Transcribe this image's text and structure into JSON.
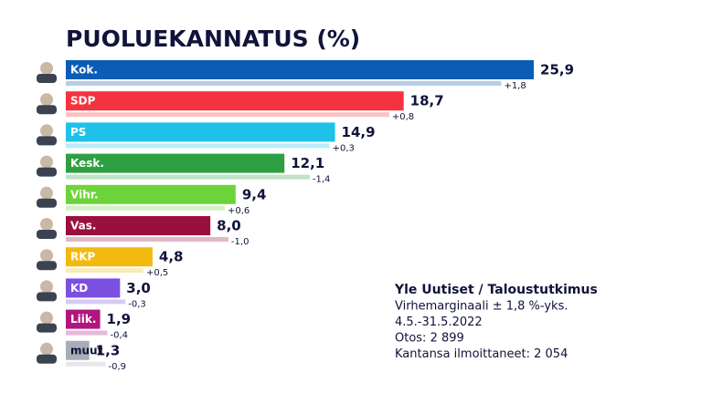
{
  "chart_data": {
    "type": "bar",
    "orientation": "horizontal",
    "title": "PUOLUEKANNATUS (%)",
    "categories": [
      "Kok.",
      "SDP",
      "PS",
      "Kesk.",
      "Vihr.",
      "Vas.",
      "RKP",
      "KD",
      "Liik.",
      "muut"
    ],
    "values": [
      25.9,
      18.7,
      14.9,
      12.1,
      9.4,
      8.0,
      4.8,
      3.0,
      1.9,
      1.3
    ],
    "value_labels": [
      "25,9",
      "18,7",
      "14,9",
      "12,1",
      "9,4",
      "8,0",
      "4,8",
      "3,0",
      "1,9",
      "1,3"
    ],
    "changes": [
      1.8,
      0.8,
      0.3,
      -1.4,
      0.6,
      -1.0,
      0.5,
      -0.3,
      -0.4,
      -0.9
    ],
    "change_labels": [
      "+1,8",
      "+0,8",
      "+0,3",
      "-1,4",
      "+0,6",
      "-1,0",
      "+0,5",
      "-0,3",
      "-0,4",
      "-0,9"
    ],
    "colors": [
      "#0a5cb5",
      "#f5333f",
      "#1fc1e8",
      "#2ea043",
      "#6dd33a",
      "#9b0f3f",
      "#f2b90f",
      "#7b4fe0",
      "#b0167d",
      "#a8aeb8"
    ],
    "xlim": [
      0,
      26
    ],
    "source": "Yle Uutiset / Taloustutkimus",
    "notes": [
      "Virhemarginaali ± 1,8 %-yks.",
      "4.5.-31.5.2022",
      "Otos: 2 899",
      "Kantansa ilmoittaneet: 2 054"
    ]
  }
}
